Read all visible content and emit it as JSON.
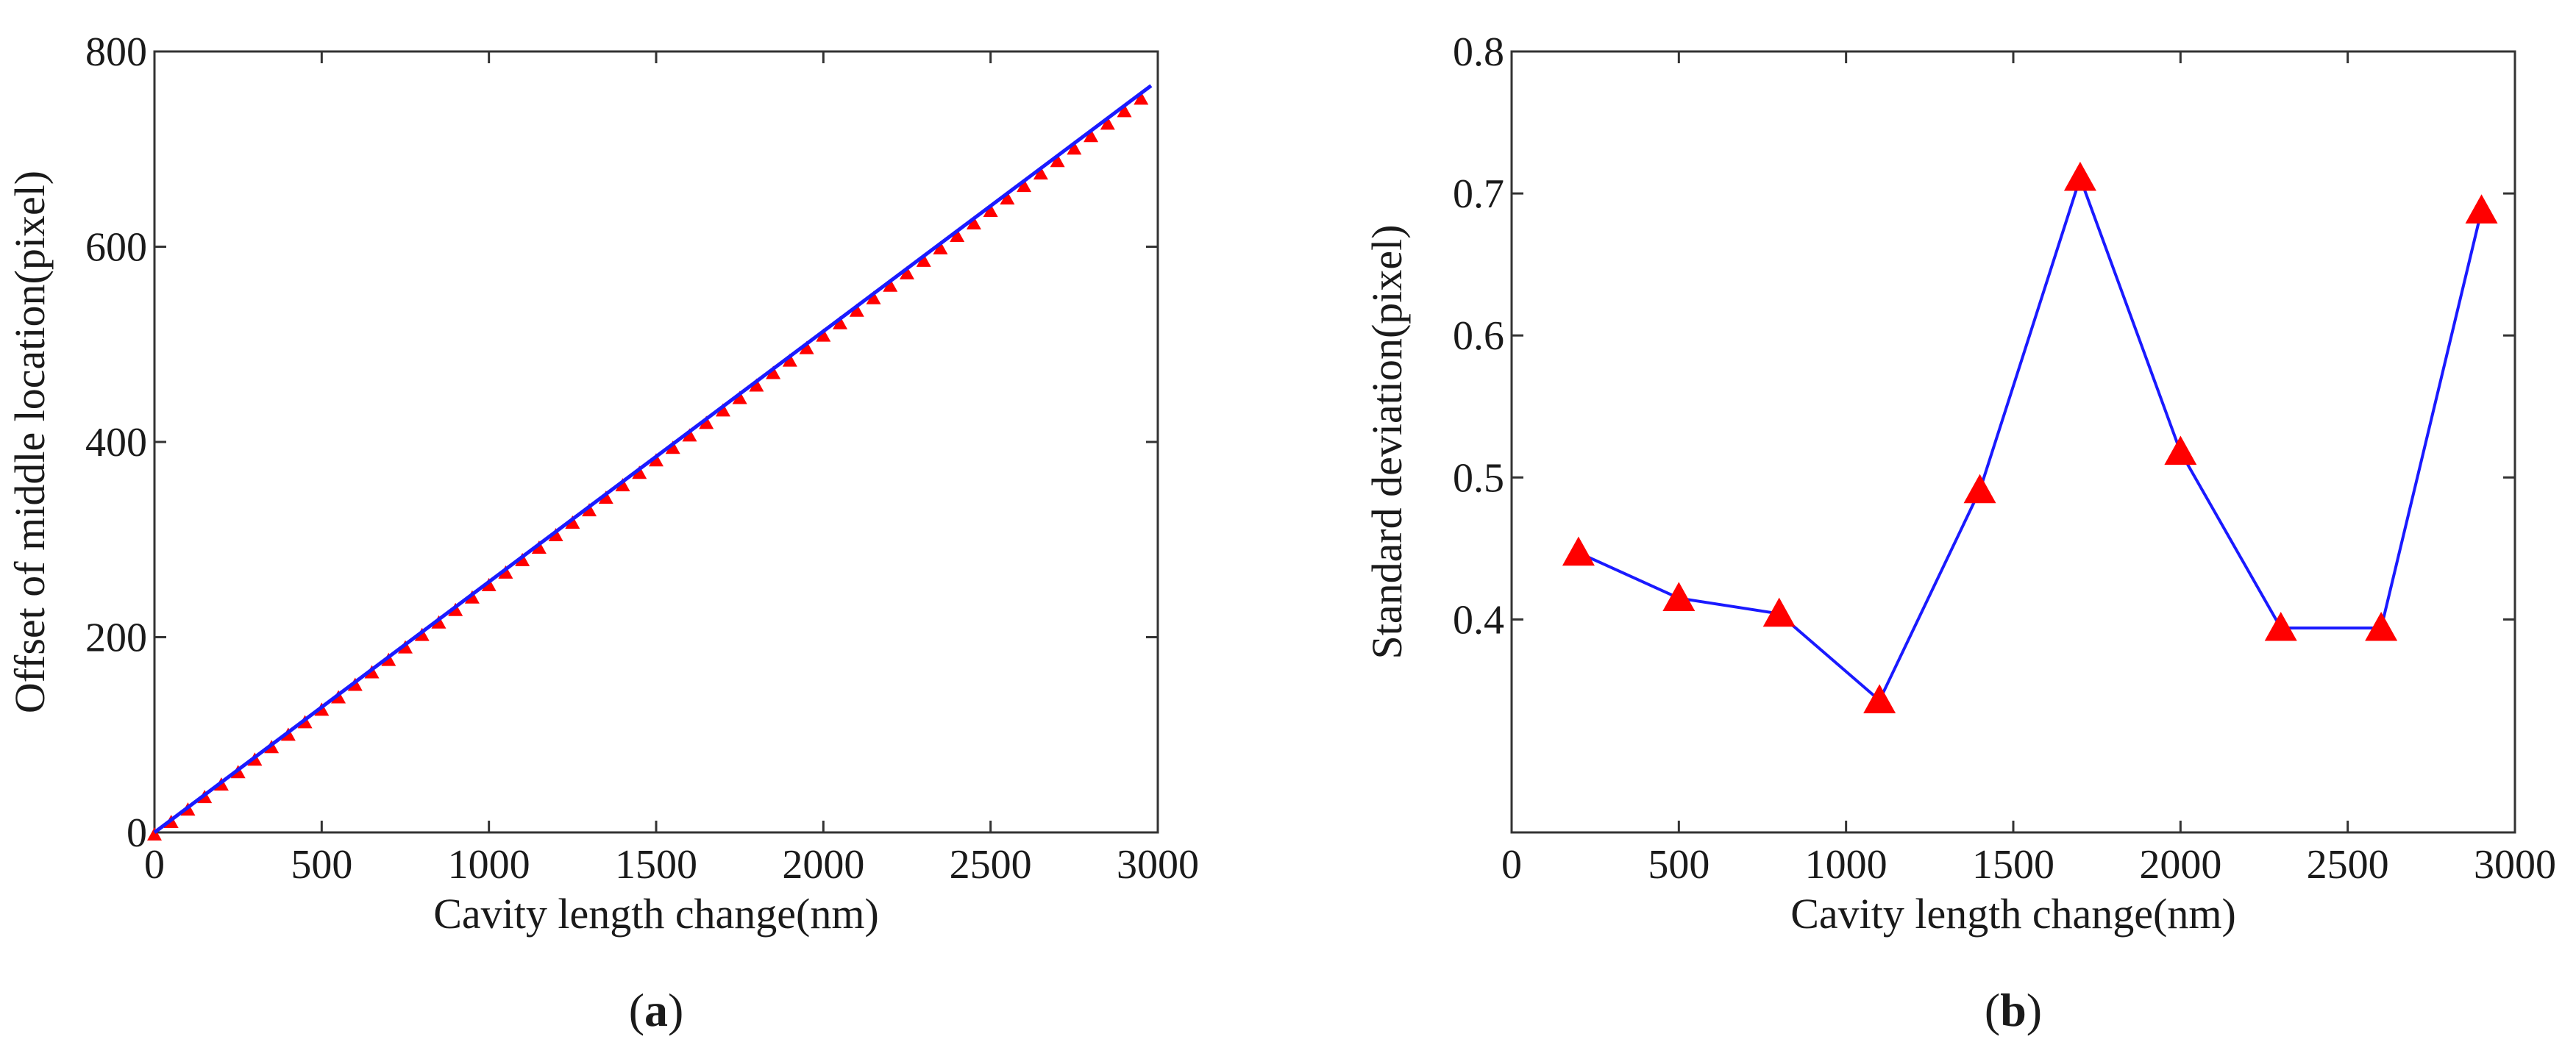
{
  "chart_data": [
    {
      "type": "line",
      "panel_label": "(a)",
      "panel_letter": "a",
      "title": "",
      "xlabel": "Cavity length change(nm)",
      "ylabel": "Offset of middle location(pixel)",
      "xlim": [
        0,
        3000
      ],
      "ylim": [
        0,
        800
      ],
      "xticks": [
        "0",
        "500",
        "1000",
        "1500",
        "2000",
        "2500",
        "3000"
      ],
      "yticks": [
        "0",
        "200",
        "400",
        "600",
        "800"
      ],
      "series": [
        {
          "name": "fit line",
          "style": "line",
          "color": "#1a1aff",
          "x": [
            0,
            2980
          ],
          "y": [
            0,
            765
          ]
        },
        {
          "name": "measured",
          "style": "triangle-markers",
          "color": "#ff0000",
          "x_start": 0,
          "x_end": 2980,
          "x_step": 50,
          "slope": 0.2555
        }
      ]
    },
    {
      "type": "line",
      "panel_label": "(b)",
      "panel_letter": "b",
      "title": "",
      "xlabel": "Cavity length change(nm)",
      "ylabel": "Standard deviation(pixel)",
      "xlim": [
        0,
        3000
      ],
      "ylim": [
        0.25,
        0.8
      ],
      "xticks": [
        "0",
        "500",
        "1000",
        "1500",
        "2000",
        "2500",
        "3000"
      ],
      "yticks": [
        "0.4",
        "0.5",
        "0.6",
        "0.7",
        "0.8"
      ],
      "series": [
        {
          "name": "standard deviation",
          "style": "line-with-triangle-markers",
          "color": "#1a1aff",
          "marker_color": "#ff0000",
          "x": [
            200,
            500,
            800,
            1100,
            1400,
            1700,
            2000,
            2300,
            2600,
            2900
          ],
          "y": [
            0.447,
            0.415,
            0.404,
            0.343,
            0.491,
            0.711,
            0.518,
            0.394,
            0.394,
            0.688
          ]
        }
      ]
    }
  ]
}
